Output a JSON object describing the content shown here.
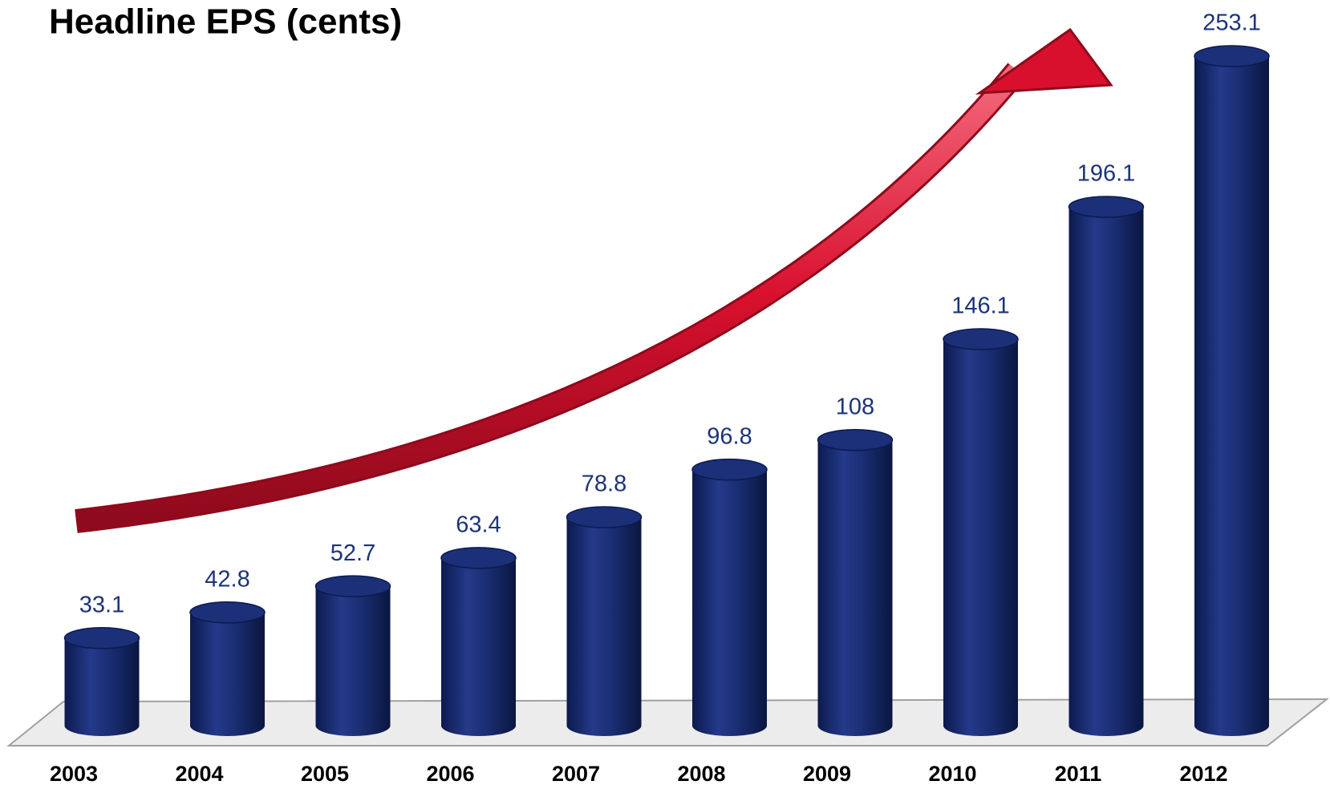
{
  "chart_data": {
    "type": "bar",
    "title": "Headline EPS (cents)",
    "categories": [
      "2003",
      "2004",
      "2005",
      "2006",
      "2007",
      "2008",
      "2009",
      "2010",
      "2011",
      "2012"
    ],
    "values": [
      33.1,
      42.8,
      52.7,
      63.4,
      78.8,
      96.8,
      108,
      146.1,
      196.1,
      253.1
    ],
    "color": "#14296b"
  }
}
